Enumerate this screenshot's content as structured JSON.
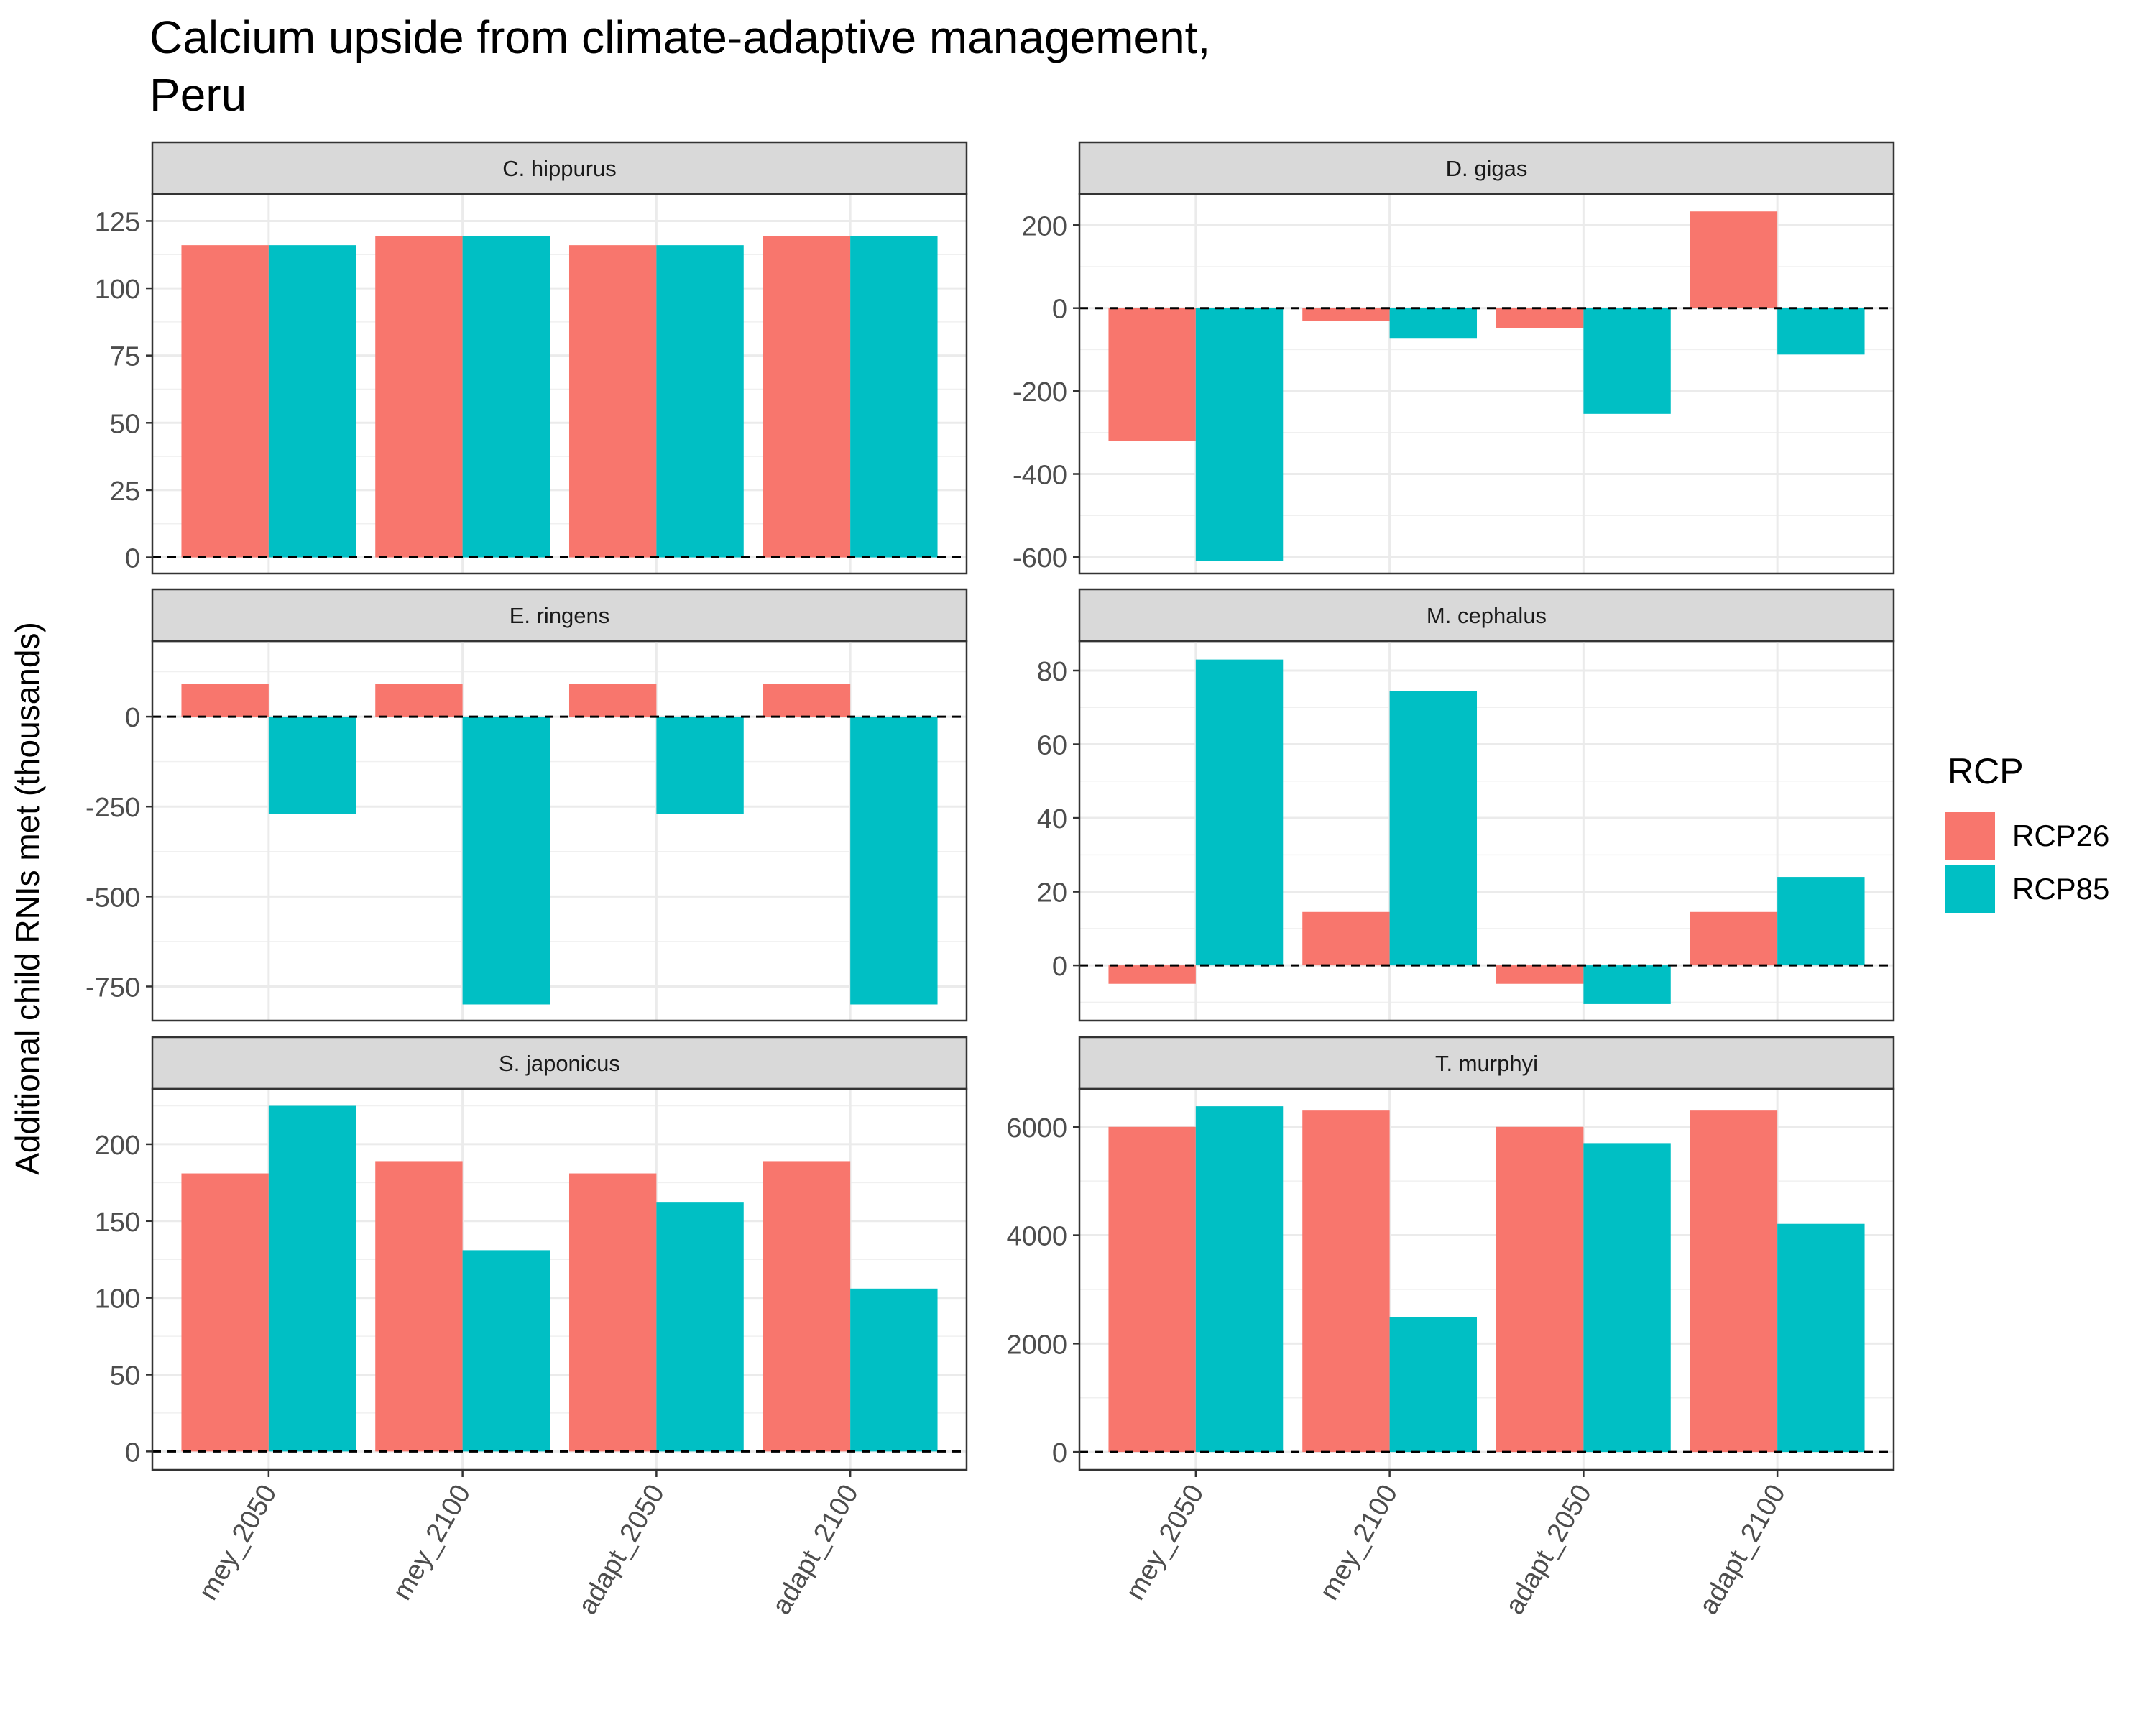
{
  "chart_data": {
    "type": "bar",
    "title": "Calcium upside from climate-adaptive management,\nPeru",
    "ylabel": "Additional child RNIs met (thousands)",
    "xlabel": "",
    "categories": [
      "mey_2050",
      "mey_2100",
      "adapt_2050",
      "adapt_2100"
    ],
    "legend": {
      "title": "RCP",
      "position": "right",
      "entries": [
        {
          "name": "RCP26",
          "color": "#F8766D"
        },
        {
          "name": "RCP85",
          "color": "#00BFC4"
        }
      ]
    },
    "grid": true,
    "reference_line": {
      "y": 0,
      "style": "dashed"
    },
    "panels": [
      {
        "label": "C. hippurus",
        "ylim": [
          -6,
          135
        ],
        "yticks": [
          0,
          25,
          50,
          75,
          100,
          125
        ],
        "series": [
          {
            "name": "RCP26",
            "values": [
              116,
              119.5,
              116,
              119.5
            ]
          },
          {
            "name": "RCP85",
            "values": [
              116,
              119.5,
              116,
              119.5
            ]
          }
        ]
      },
      {
        "label": "D. gigas",
        "ylim": [
          -640,
          275
        ],
        "yticks": [
          -600,
          -400,
          -200,
          0,
          200
        ],
        "series": [
          {
            "name": "RCP26",
            "values": [
              -320,
              -30,
              -48,
              233
            ]
          },
          {
            "name": "RCP85",
            "values": [
              -610,
              -72,
              -255,
              -112
            ]
          }
        ]
      },
      {
        "label": "E. ringens",
        "ylim": [
          -845,
          210
        ],
        "yticks": [
          -750,
          -500,
          -250,
          0
        ],
        "series": [
          {
            "name": "RCP26",
            "values": [
              92,
              92,
              92,
              92
            ]
          },
          {
            "name": "RCP85",
            "values": [
              -270,
              -800,
              -270,
              -800
            ]
          }
        ]
      },
      {
        "label": "M. cephalus",
        "ylim": [
          -15,
          88
        ],
        "yticks": [
          0,
          20,
          40,
          60,
          80
        ],
        "series": [
          {
            "name": "RCP26",
            "values": [
              -5,
              14.5,
              -5,
              14.5
            ]
          },
          {
            "name": "RCP85",
            "values": [
              83,
              74.5,
              -10.5,
              24
            ]
          }
        ]
      },
      {
        "label": "S. japonicus",
        "ylim": [
          -12,
          236
        ],
        "yticks": [
          0,
          50,
          100,
          150,
          200
        ],
        "series": [
          {
            "name": "RCP26",
            "values": [
              181,
              189,
              181,
              189
            ]
          },
          {
            "name": "RCP85",
            "values": [
              225,
              131,
              162,
              106
            ]
          }
        ]
      },
      {
        "label": "T. murphyi",
        "ylim": [
          -330,
          6700
        ],
        "yticks": [
          0,
          2000,
          4000,
          6000
        ],
        "series": [
          {
            "name": "RCP26",
            "values": [
              6000,
              6300,
              6000,
              6300
            ]
          },
          {
            "name": "RCP85",
            "values": [
              6380,
              2490,
              5700,
              4210
            ]
          }
        ]
      }
    ]
  }
}
